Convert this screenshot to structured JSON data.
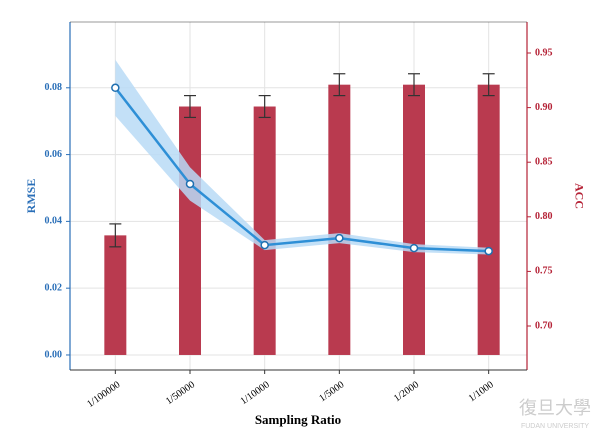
{
  "chart_data": {
    "type": "bar-line",
    "xlabel": "Sampling Ratio",
    "ylabel": "RMSE",
    "y2label": "ACC",
    "categories": [
      "1/100000",
      "1/50000",
      "1/10000",
      "1/5000",
      "1/2000",
      "1/1000"
    ],
    "series": [
      {
        "name": "RMSE",
        "type": "line",
        "color": "#2e8fd6",
        "band_color": "#b9dbf6",
        "values": [
          0.08,
          0.0512,
          0.0329,
          0.035,
          0.032,
          0.0311
        ],
        "ci": [
          0.0084,
          0.005,
          0.0015,
          0.0015,
          0.0012,
          0.001
        ]
      },
      {
        "name": "ACC",
        "type": "bar",
        "axis": "y2",
        "color": "#b93a4f",
        "values": [
          0.783,
          0.901,
          0.901,
          0.921,
          0.921,
          0.921
        ],
        "errors": [
          0.0105,
          0.01,
          0.01,
          0.01,
          0.01,
          0.01
        ]
      }
    ],
    "ylim": [
      -0.0045,
      0.0997
    ],
    "yticks": [
      {
        "value": 0,
        "label": "0.00"
      },
      0.02,
      0.04,
      0.06,
      0.08
    ],
    "y2lim": [
      0.6597,
      0.9784
    ],
    "y2ticks": [
      {
        "value": 0.7,
        "label": "0.70"
      },
      0.75,
      {
        "value": 0.8,
        "label": "0.80"
      },
      0.85,
      {
        "value": 0.9,
        "label": "0.90"
      },
      0.95
    ],
    "grid": true,
    "watermark": [
      "復旦大學",
      "FUDAN UNIVERSITY"
    ]
  }
}
